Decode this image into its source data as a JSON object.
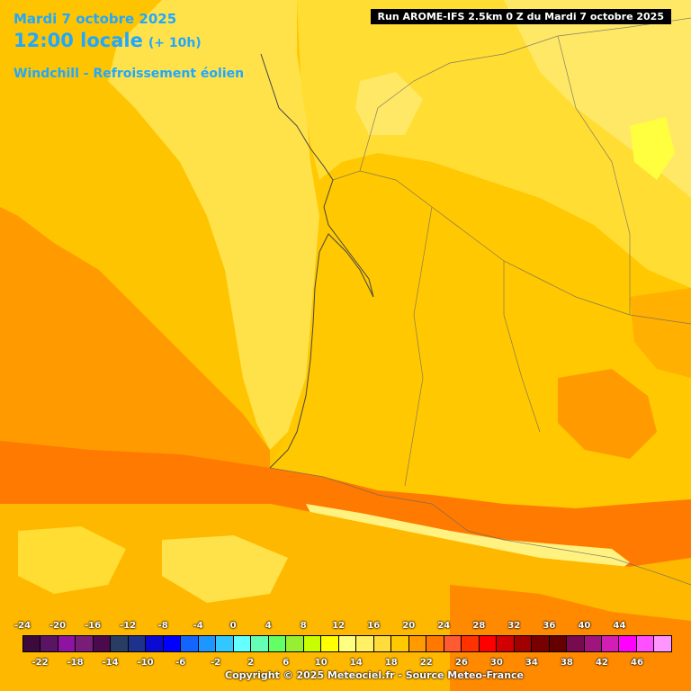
{
  "header": {
    "date": "Mardi 7 octobre 2025",
    "time": "12:00 locale",
    "lead": "(+ 10h)",
    "parameter": "Windchill - Refroissement éolien"
  },
  "run_label": "Run AROME-IFS 2.5km 0 Z du Mardi 7 octobre 2025",
  "copyright": "Copyright © 2025 Meteociel.fr - Source Meteo-France",
  "legend": {
    "top_labels": [
      "-24",
      "-20",
      "-16",
      "-12",
      "-8",
      "-4",
      "0",
      "4",
      "8",
      "12",
      "16",
      "20",
      "24",
      "28",
      "32",
      "36",
      "40",
      "44"
    ],
    "bottom_labels": [
      "-22",
      "-18",
      "-14",
      "-10",
      "-6",
      "-2",
      "2",
      "6",
      "10",
      "14",
      "18",
      "22",
      "26",
      "30",
      "34",
      "38",
      "42",
      "46"
    ],
    "colors": [
      "#3c0a3c",
      "#5a1464",
      "#8c14a0",
      "#781e78",
      "#4b0a4b",
      "#283c64",
      "#1e328c",
      "#0a0ad2",
      "#0000ff",
      "#1464ff",
      "#1e96ff",
      "#32c8ff",
      "#64ffff",
      "#64ffb4",
      "#64ff64",
      "#96f032",
      "#c8ff00",
      "#ffff00",
      "#ffff80",
      "#fff064",
      "#ffdc3c",
      "#ffc800",
      "#ff9b00",
      "#ff7800",
      "#ff5a32",
      "#ff3200",
      "#ff0000",
      "#d20000",
      "#a00000",
      "#780000",
      "#640000",
      "#780a50",
      "#a0147d",
      "#d21eb4",
      "#ff00ff",
      "#ff50ff",
      "#ff96ff"
    ]
  },
  "colors": {
    "c16": "#ffdd33",
    "c18": "#ffc800",
    "c20": "#ff9900",
    "c22": "#ff7a00",
    "c14": "#fff280",
    "c12": "#ffff66",
    "border": "#444444",
    "title": "#20a8ff"
  }
}
